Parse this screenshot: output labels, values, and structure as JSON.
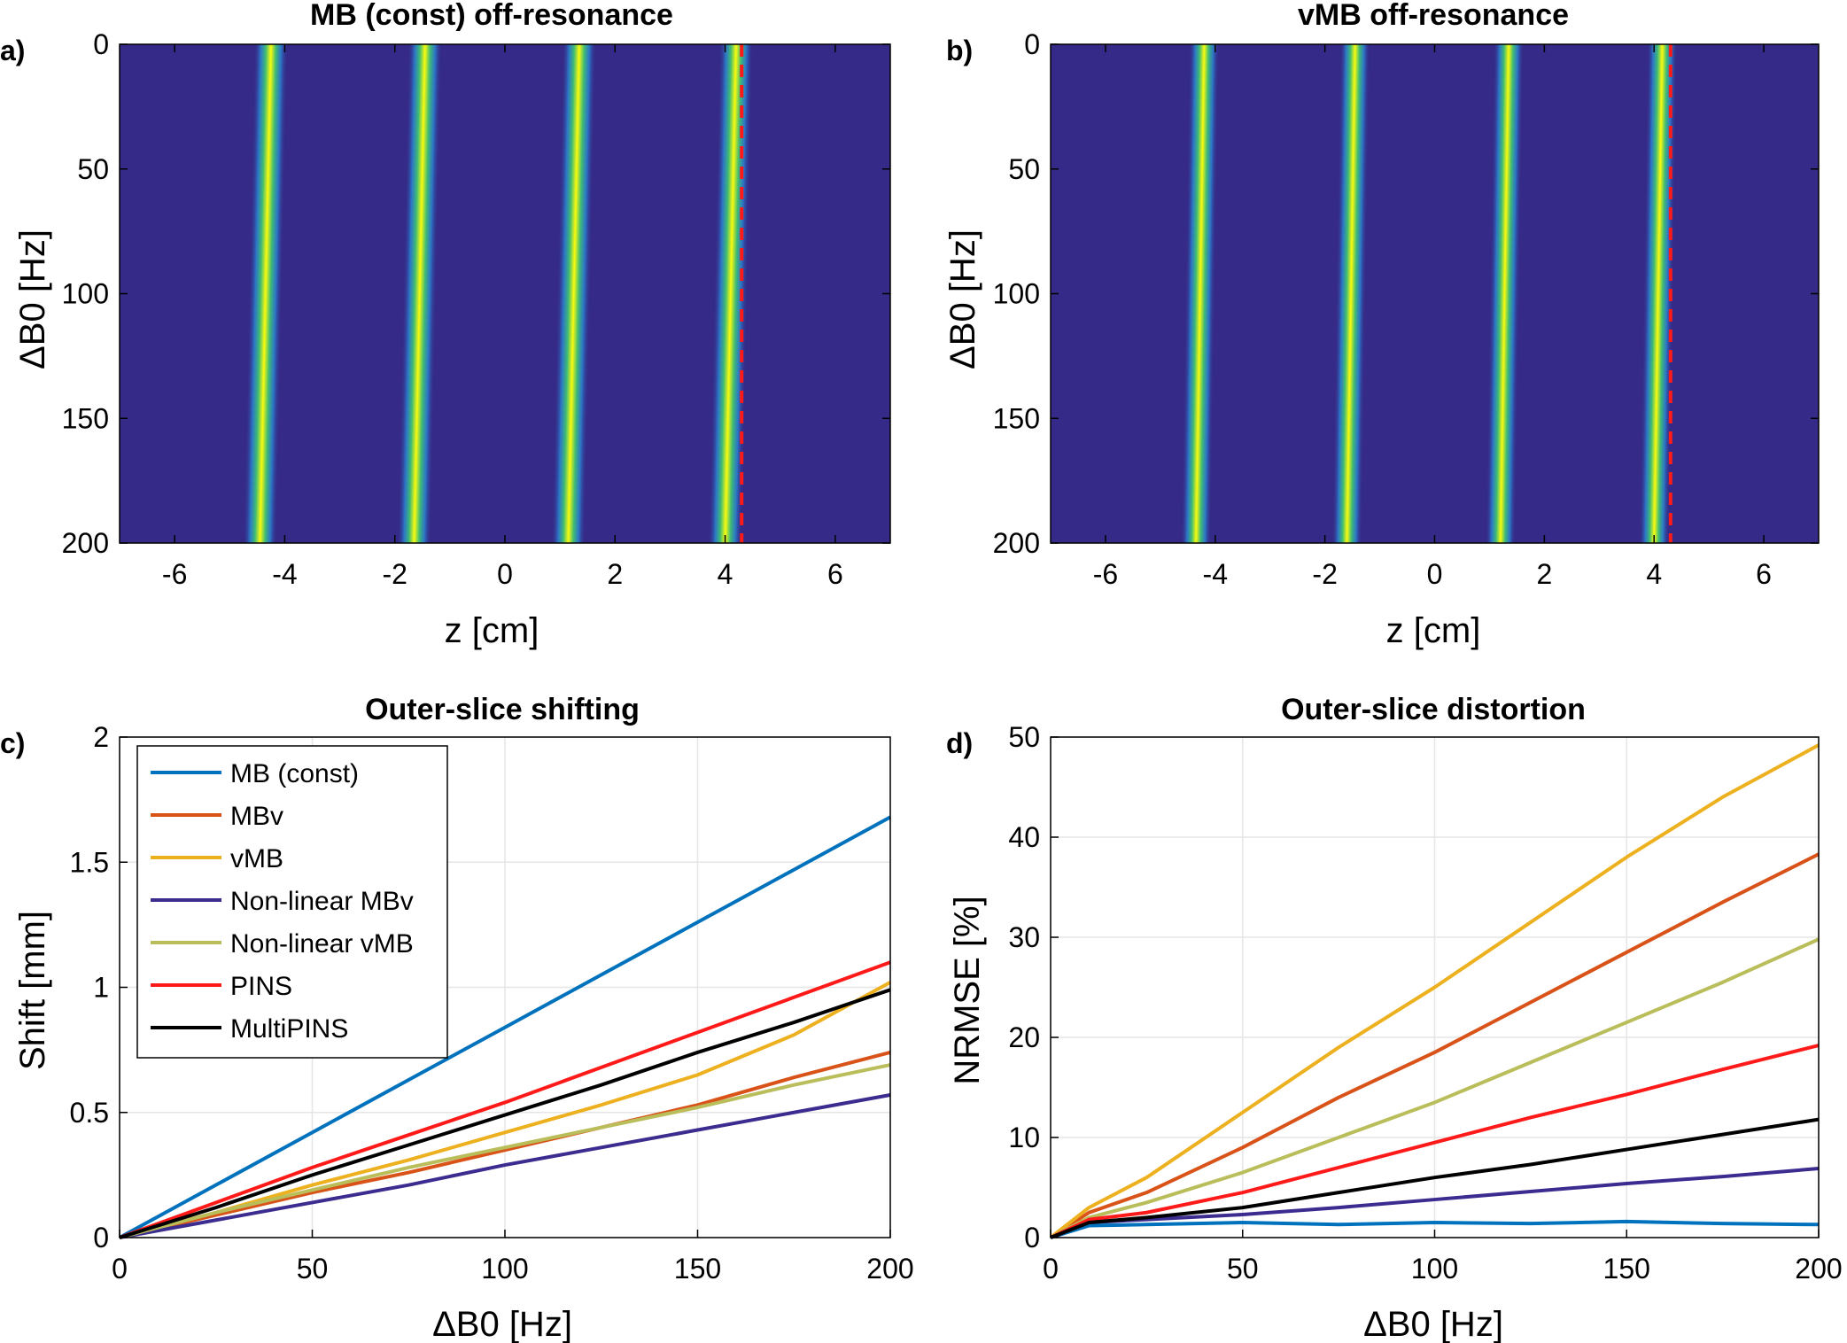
{
  "figure": {
    "panels": [
      {
        "letter": "a)",
        "title": "MB (const) off-resonance",
        "xlabel": "z [cm]",
        "ylabel": "ΔB0 [Hz]"
      },
      {
        "letter": "b)",
        "title": "vMB off-resonance",
        "xlabel": "z [cm]",
        "ylabel": "ΔB0 [Hz]"
      },
      {
        "letter": "c)",
        "title": "Outer-slice shifting",
        "xlabel": "ΔB0 [Hz]",
        "ylabel": "Shift [mm]"
      },
      {
        "letter": "d)",
        "title": "Outer-slice distortion",
        "xlabel": "ΔB0 [Hz]",
        "ylabel": "NRMSE [%]"
      }
    ]
  },
  "chart_data": [
    {
      "type": "heatmap",
      "title": "MB (const) off-resonance",
      "xlabel": "z [cm]",
      "ylabel": "ΔB0 [Hz]",
      "xlim": [
        -7,
        7
      ],
      "ylim": [
        0,
        200
      ],
      "xticks": [
        -6,
        -4,
        -2,
        0,
        2,
        4,
        6
      ],
      "yticks": [
        0,
        50,
        100,
        150,
        200
      ],
      "y_reversed": true,
      "colors": {
        "background": "#352a87",
        "band_core": "#f9fb0e",
        "band_edge": "#3fbc73",
        "marker": "#ff1a1a"
      },
      "slice_bands": [
        {
          "z_at_0": -4.25,
          "z_at_200": -4.45,
          "width_cm": 0.28
        },
        {
          "z_at_0": -1.45,
          "z_at_200": -1.65,
          "width_cm": 0.28
        },
        {
          "z_at_0": 1.35,
          "z_at_200": 1.15,
          "width_cm": 0.28
        },
        {
          "z_at_0": 4.2,
          "z_at_200": 4.0,
          "width_cm": 0.28
        }
      ],
      "reference_line_z": 4.3
    },
    {
      "type": "heatmap",
      "title": "vMB off-resonance",
      "xlabel": "z [cm]",
      "ylabel": "ΔB0 [Hz]",
      "xlim": [
        -7,
        7
      ],
      "ylim": [
        0,
        200
      ],
      "xticks": [
        -6,
        -4,
        -2,
        0,
        2,
        4,
        6
      ],
      "yticks": [
        0,
        50,
        100,
        150,
        200
      ],
      "y_reversed": true,
      "colors": {
        "background": "#352a87",
        "band_core": "#f9fb0e",
        "band_edge": "#3fbc73",
        "marker": "#ff1a1a"
      },
      "slice_bands": [
        {
          "z_at_0": -4.2,
          "z_at_200": -4.35,
          "width_cm": 0.25
        },
        {
          "z_at_0": -1.45,
          "z_at_200": -1.6,
          "width_cm": 0.25
        },
        {
          "z_at_0": 1.35,
          "z_at_200": 1.2,
          "width_cm": 0.25
        },
        {
          "z_at_0": 4.15,
          "z_at_200": 4.0,
          "width_cm": 0.25
        }
      ],
      "reference_line_z": 4.3
    },
    {
      "type": "line",
      "title": "Outer-slice shifting",
      "xlabel": "ΔB0 [Hz]",
      "ylabel": "Shift [mm]",
      "x": [
        0,
        25,
        50,
        75,
        100,
        125,
        150,
        175,
        200
      ],
      "xlim": [
        0,
        200
      ],
      "ylim": [
        0,
        2
      ],
      "xticks": [
        0,
        50,
        100,
        150,
        200
      ],
      "yticks": [
        0,
        0.5,
        1,
        1.5,
        2
      ],
      "grid": true,
      "legend_position": "top-left",
      "series": [
        {
          "name": "MB (const)",
          "color": "#0072bd",
          "values": [
            0,
            0.21,
            0.42,
            0.63,
            0.84,
            1.05,
            1.26,
            1.47,
            1.68
          ]
        },
        {
          "name": "MBv",
          "color": "#d95319",
          "values": [
            0,
            0.09,
            0.18,
            0.26,
            0.35,
            0.44,
            0.53,
            0.64,
            0.74
          ]
        },
        {
          "name": "vMB",
          "color": "#edb120",
          "values": [
            0,
            0.1,
            0.21,
            0.31,
            0.42,
            0.53,
            0.65,
            0.81,
            1.02
          ]
        },
        {
          "name": "Non-linear MBv",
          "color": "#3b2c8f",
          "values": [
            0,
            0.07,
            0.14,
            0.21,
            0.29,
            0.36,
            0.43,
            0.5,
            0.57
          ]
        },
        {
          "name": "Non-linear vMB",
          "color": "#b9bd5a",
          "values": [
            0,
            0.1,
            0.19,
            0.28,
            0.36,
            0.44,
            0.52,
            0.61,
            0.69
          ]
        },
        {
          "name": "PINS",
          "color": "#ff1a1a",
          "values": [
            0,
            0.14,
            0.28,
            0.41,
            0.54,
            0.68,
            0.82,
            0.96,
            1.1
          ]
        },
        {
          "name": "MultiPINS",
          "color": "#000000",
          "values": [
            0,
            0.12,
            0.25,
            0.37,
            0.49,
            0.61,
            0.74,
            0.86,
            0.99
          ]
        }
      ]
    },
    {
      "type": "line",
      "title": "Outer-slice distortion",
      "xlabel": "ΔB0 [Hz]",
      "ylabel": "NRMSE [%]",
      "x": [
        0,
        10,
        25,
        50,
        75,
        100,
        125,
        150,
        175,
        200
      ],
      "xlim": [
        0,
        200
      ],
      "ylim": [
        0,
        50
      ],
      "xticks": [
        0,
        50,
        100,
        150,
        200
      ],
      "yticks": [
        0,
        10,
        20,
        30,
        40,
        50
      ],
      "grid": true,
      "series": [
        {
          "name": "MB (const)",
          "color": "#0072bd",
          "values": [
            0,
            1.2,
            1.3,
            1.5,
            1.3,
            1.5,
            1.4,
            1.6,
            1.4,
            1.3
          ]
        },
        {
          "name": "MBv",
          "color": "#d95319",
          "values": [
            0,
            2.5,
            4.5,
            9,
            14,
            18.5,
            23.5,
            28.5,
            33.5,
            38.3
          ]
        },
        {
          "name": "vMB",
          "color": "#edb120",
          "values": [
            0,
            3,
            6,
            12.5,
            19,
            25,
            31.5,
            38,
            44,
            49.2
          ]
        },
        {
          "name": "Non-linear MBv",
          "color": "#3b2c8f",
          "values": [
            0,
            1.5,
            1.8,
            2.3,
            3,
            3.8,
            4.6,
            5.4,
            6.1,
            6.9
          ]
        },
        {
          "name": "Non-linear vMB",
          "color": "#b9bd5a",
          "values": [
            0,
            2,
            3.5,
            6.5,
            10,
            13.5,
            17.5,
            21.5,
            25.5,
            29.8
          ]
        },
        {
          "name": "PINS",
          "color": "#ff1a1a",
          "values": [
            0,
            1.8,
            2.5,
            4.5,
            7,
            9.5,
            12,
            14.3,
            16.8,
            19.2
          ]
        },
        {
          "name": "MultiPINS",
          "color": "#000000",
          "values": [
            0,
            1.5,
            2,
            3,
            4.5,
            6,
            7.3,
            8.8,
            10.3,
            11.8
          ]
        }
      ]
    }
  ]
}
